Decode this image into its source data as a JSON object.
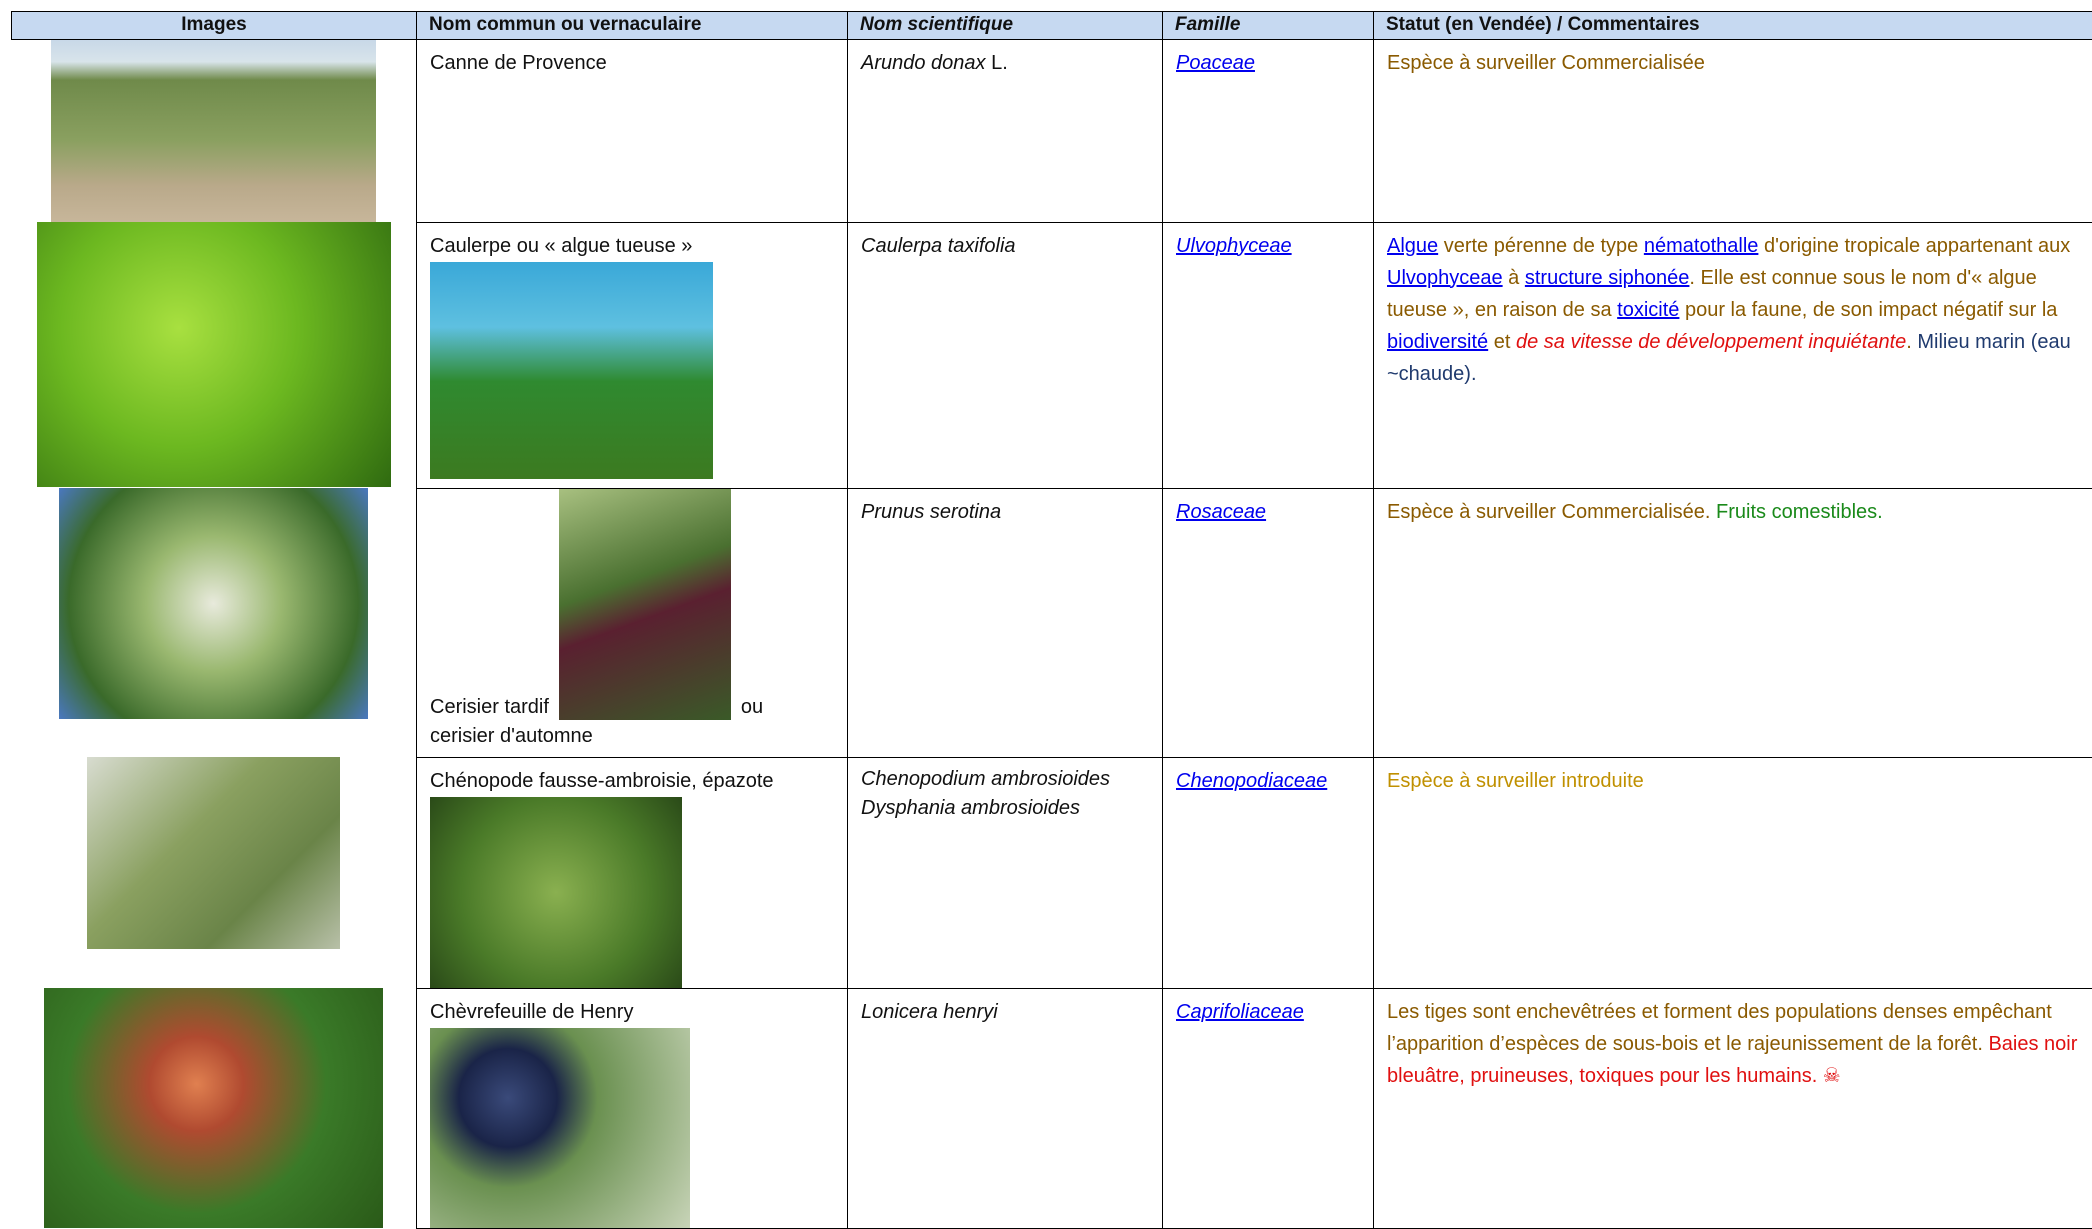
{
  "header": [
    "Images",
    "Nom commun ou vernaculaire",
    "Nom scientifique",
    "Famille",
    "Statut (en Vendée) / Commentaires"
  ],
  "rows": [
    {
      "common": [
        "Canne de Provence"
      ],
      "scientific": [
        "Arundo donax",
        " L."
      ],
      "family": "Poaceae",
      "comment": [
        "Espèce à surveiller Commercialisée"
      ]
    },
    {
      "common": [
        "Caulerpe ou « algue tueuse »"
      ],
      "scientific": [
        "Caulerpa taxifolia"
      ],
      "family": "Ulvophyceae",
      "comment": [
        "Algue",
        " verte pérenne de type ",
        "nématothalle",
        " d'origine tropicale appartenant aux ",
        "Ulvophyceae",
        " à ",
        "structure siphonée",
        ". Elle est connue sous le nom d'« algue tueuse », en raison de sa ",
        "toxicité",
        " pour la faune, de son impact négatif sur la ",
        "biodiversité",
        " et ",
        "de sa vitesse de développement inquiétante",
        ". ",
        "Milieu marin (eau ~chaude)."
      ]
    },
    {
      "common": [
        "Cerisier tardif",
        "ou",
        "cerisier d'automne"
      ],
      "scientific": [
        "Prunus serotina"
      ],
      "family": "Rosaceae",
      "comment": [
        "Espèce à surveiller Commercialisée.",
        " Fruits comestibles."
      ]
    },
    {
      "common": [
        "Chénopode fausse-ambroisie, épazote"
      ],
      "scientific": [
        "Chenopodium ambrosioides",
        "Dysphania ambrosioides"
      ],
      "family": "Chenopodiaceae",
      "comment": [
        "Espèce à surveiller introduite"
      ]
    },
    {
      "common": [
        "Chèvrefeuille de Henry"
      ],
      "scientific": [
        "Lonicera henryi"
      ],
      "family": "Caprifoliaceae",
      "comment": [
        "Les tiges sont enchevêtrées et forment des populations denses empêchant l’apparition d’espèces de sous-bois et le rajeunissement de la forêt.",
        " Baies noir bleuâtre, pruineuses, toxiques pour les humains. ☠"
      ]
    }
  ]
}
